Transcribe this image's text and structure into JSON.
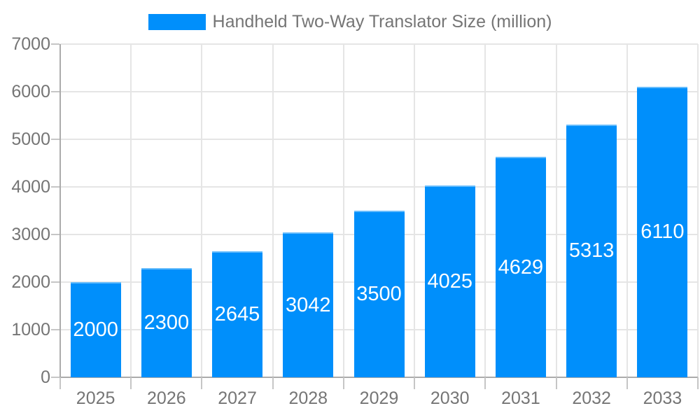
{
  "chart_data": {
    "type": "bar",
    "title": "Handheld Two-Way Translator Size (million)",
    "categories": [
      "2025",
      "2026",
      "2027",
      "2028",
      "2029",
      "2030",
      "2031",
      "2032",
      "2033"
    ],
    "values": [
      2000,
      2300,
      2645,
      3042,
      3500,
      4025,
      4629,
      5313,
      6110
    ],
    "xlabel": "",
    "ylabel": "",
    "ylim": [
      0,
      7000
    ],
    "ytick_step": 1000,
    "grid": true,
    "legend_position": "top-center",
    "value_label_position": "inside-center"
  },
  "colors": {
    "bar": "#008FFB",
    "grid_line": "#e5e5e5",
    "axis_line": "#ababab",
    "tick": "#c6c6c6",
    "axis_label": "#757575",
    "value_label": "#ffffff",
    "background": "#ffffff"
  }
}
